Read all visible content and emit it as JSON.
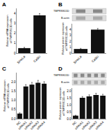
{
  "chart_data": [
    {
      "type": "bar",
      "title": "A",
      "categories": [
        "SiHeLa",
        "CaSki"
      ],
      "values": [
        0.5,
        3.8
      ],
      "errors": [
        0.08,
        0.18
      ],
      "color": "#111111",
      "ylabel": "Relative mRNA expression\nof TMPRSS11D cells",
      "ylim": [
        0,
        4.5
      ],
      "yticks": [
        0,
        1,
        2,
        3,
        4
      ],
      "grid": false
    },
    {
      "type": "bar",
      "title": "B",
      "categories": [
        "SiHeLa",
        "CaSki"
      ],
      "values": [
        0.7,
        4.0
      ],
      "errors": [
        0.1,
        0.2
      ],
      "color": "#111111",
      "ylabel": "Relative protein expression\nof TMPRSS11D cells",
      "ylim": [
        0,
        5.0
      ],
      "yticks": [
        0,
        1,
        2,
        3,
        4
      ],
      "grid": false,
      "annotations": [
        "TMPRSS11D",
        "B-actin"
      ]
    },
    {
      "type": "bar",
      "title": "C",
      "categories": [
        "NC",
        "siRNA1",
        "siRNA2",
        "siRNA3",
        "siRNA4"
      ],
      "values": [
        0.28,
        1.75,
        1.85,
        1.95,
        1.9
      ],
      "errors": [
        0.04,
        0.1,
        0.12,
        0.13,
        0.11
      ],
      "color": "#111111",
      "ylabel": "Relative mRNA expression\nof TMPRSS11D cells",
      "ylim": [
        0,
        2.5
      ],
      "yticks": [
        {
          "value": 0.0,
          "label": "0.0"
        },
        0.5,
        {
          "value": 1.0,
          "label": "1.0"
        },
        1.5,
        {
          "value": 2.0,
          "label": "2.0"
        }
      ],
      "grid": false
    },
    {
      "type": "bar",
      "title": "D",
      "categories": [
        "NC",
        "siRNA1",
        "siRNA2",
        "siRNA3",
        "siRNA4"
      ],
      "values": [
        0.22,
        1.5,
        1.6,
        1.7,
        1.65
      ],
      "errors": [
        0.03,
        0.09,
        0.11,
        0.12,
        0.1
      ],
      "color": "#111111",
      "ylabel": "Relative protein expression\nof TMPRSS11D cells",
      "ylim": [
        0,
        2.2
      ],
      "yticks": [
        {
          "value": 0.0,
          "label": "0.0"
        },
        0.5,
        {
          "value": 1.0,
          "label": "1.0"
        },
        1.5,
        {
          "value": 2.0,
          "label": "2.0"
        }
      ],
      "grid": false,
      "annotations": [
        "TMPRSS11D",
        "B-actin"
      ]
    }
  ]
}
